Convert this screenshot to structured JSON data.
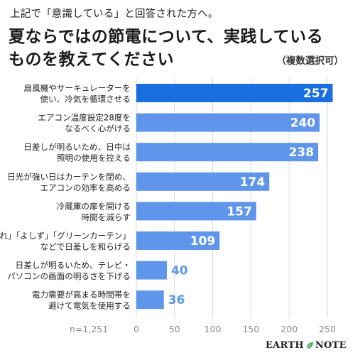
{
  "header": {
    "subtitle": "上記で「意識している」と回答された方へ。",
    "title_line1": "夏ならではの節電について、実践している",
    "title_line2": "ものを教えてください",
    "note": "（複数選択可）"
  },
  "chart_data": {
    "type": "bar",
    "orientation": "horizontal",
    "categories": [
      [
        "扇風機やサーキュレーターを",
        "使い、冷気を循環させる"
      ],
      [
        "エアコン温度設定28度を",
        "なるべく心がける"
      ],
      [
        "日差しが明るいため、日中は",
        "照明の使用を控える"
      ],
      [
        "日光が強い日はカーテンを閉め、",
        "エアコンの効率を高める"
      ],
      [
        "冷蔵庫の扉を開ける",
        "時間を減らす"
      ],
      [
        "「すだれ」「よしず」「グリーンカーテン」",
        "などで日差しを和らげる"
      ],
      [
        "日差しが明るいため、テレビ・",
        "パソコンの画面の明るさを下げる"
      ],
      [
        "電力需要が高まる時間帯を",
        "避けて電気を使用する"
      ]
    ],
    "values": [
      257,
      240,
      238,
      174,
      157,
      109,
      40,
      36
    ],
    "xlim": [
      0,
      250
    ],
    "xticks": [
      0,
      50,
      100,
      150,
      200,
      250
    ],
    "grid": true,
    "n_label": "n=1,251",
    "colors": {
      "highlight": "#1a6fe0",
      "bar": "#5f95ea",
      "value_outside": "#5f95ea",
      "grid": "#d9d9d9"
    }
  },
  "footer": {
    "brand_left": "EARTH",
    "brand_right": "NOTE",
    "brand_icon": "leaf-icon"
  }
}
